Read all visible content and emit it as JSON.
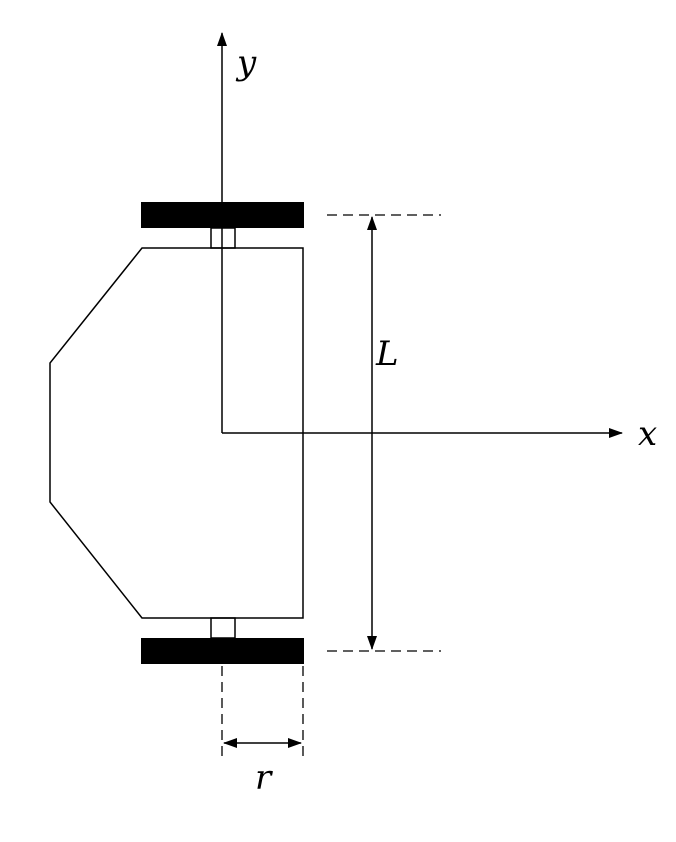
{
  "axes": {
    "y_label": "y",
    "x_label": "x"
  },
  "dimensions": {
    "wheelbase_label": "L",
    "wheel_radius_label": "r"
  },
  "colors": {
    "stroke": "#000000",
    "wheel_fill": "#000000",
    "background": "#ffffff"
  }
}
